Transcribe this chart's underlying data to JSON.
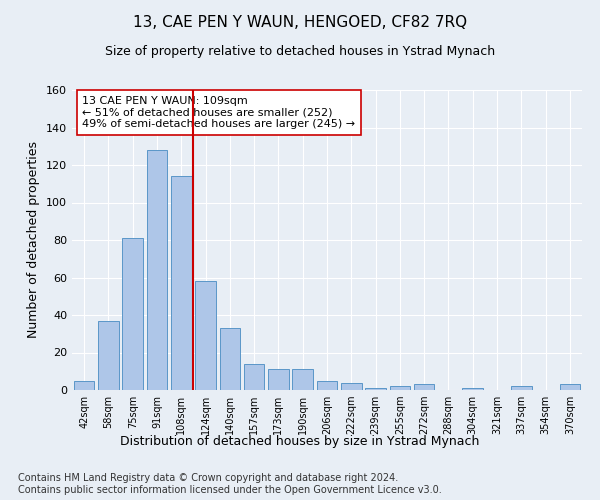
{
  "title": "13, CAE PEN Y WAUN, HENGOED, CF82 7RQ",
  "subtitle": "Size of property relative to detached houses in Ystrad Mynach",
  "xlabel": "Distribution of detached houses by size in Ystrad Mynach",
  "ylabel": "Number of detached properties",
  "categories": [
    "42sqm",
    "58sqm",
    "75sqm",
    "91sqm",
    "108sqm",
    "124sqm",
    "140sqm",
    "157sqm",
    "173sqm",
    "190sqm",
    "206sqm",
    "222sqm",
    "239sqm",
    "255sqm",
    "272sqm",
    "288sqm",
    "304sqm",
    "321sqm",
    "337sqm",
    "354sqm",
    "370sqm"
  ],
  "values": [
    5,
    37,
    81,
    128,
    114,
    58,
    33,
    14,
    11,
    11,
    5,
    4,
    1,
    2,
    3,
    0,
    1,
    0,
    2,
    0,
    3
  ],
  "bar_color": "#aec6e8",
  "bar_edge_color": "#5a96c8",
  "vline_x": 4.5,
  "vline_color": "#cc0000",
  "annotation_text": "13 CAE PEN Y WAUN: 109sqm\n← 51% of detached houses are smaller (252)\n49% of semi-detached houses are larger (245) →",
  "annotation_box_color": "#ffffff",
  "annotation_box_edge_color": "#cc0000",
  "ylim": [
    0,
    160
  ],
  "yticks": [
    0,
    20,
    40,
    60,
    80,
    100,
    120,
    140,
    160
  ],
  "background_color": "#e8eef5",
  "grid_color": "#ffffff",
  "footer": "Contains HM Land Registry data © Crown copyright and database right 2024.\nContains public sector information licensed under the Open Government Licence v3.0.",
  "title_fontsize": 11,
  "subtitle_fontsize": 9,
  "xlabel_fontsize": 9,
  "ylabel_fontsize": 9,
  "annotation_fontsize": 8,
  "footer_fontsize": 7
}
